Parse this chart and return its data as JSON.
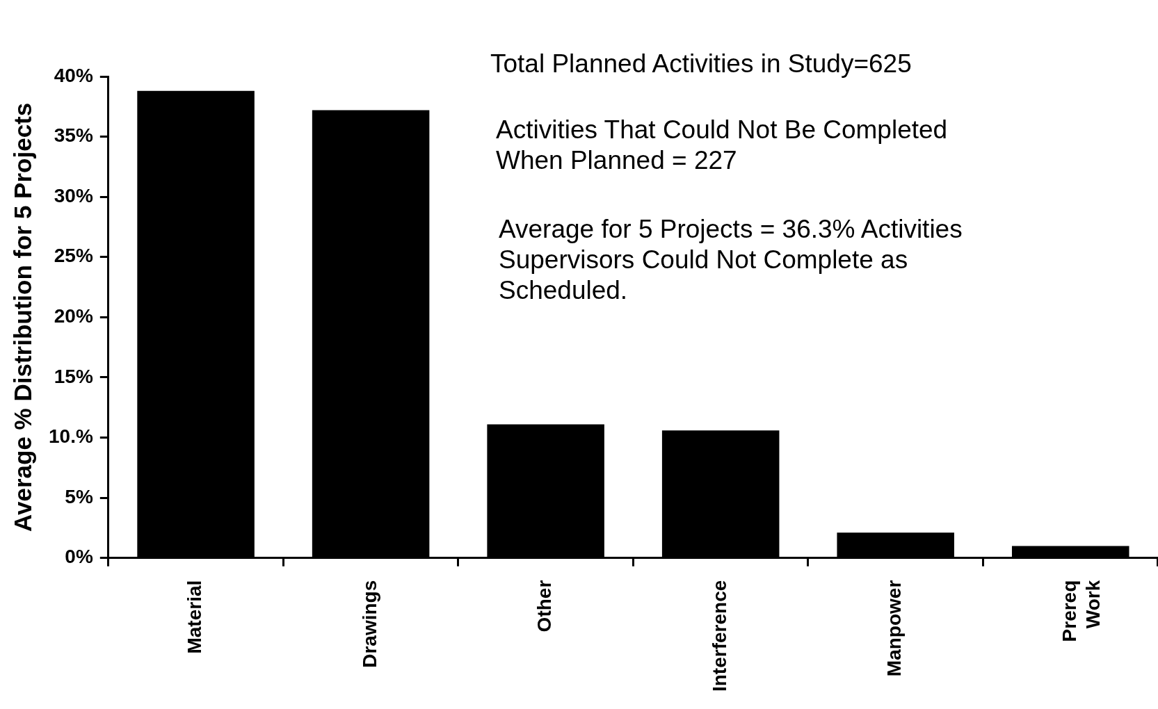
{
  "chart_data": {
    "type": "bar",
    "categories": [
      "Material",
      "Drawings",
      "Other",
      "Interference",
      "Manpower",
      "Prereq\nWork"
    ],
    "values": [
      38.8,
      37.2,
      11.1,
      10.6,
      2.1,
      1.0
    ],
    "color": "#000000",
    "ylabel": "Average % Distribution for 5 Projects",
    "ylim": [
      0,
      40
    ],
    "yticks": [
      {
        "value": 0,
        "label": "0%"
      },
      {
        "value": 5,
        "label": "5%"
      },
      {
        "value": 10,
        "label": "10.%"
      },
      {
        "value": 15,
        "label": "15%"
      },
      {
        "value": 20,
        "label": "20%"
      },
      {
        "value": 25,
        "label": "25%"
      },
      {
        "value": 30,
        "label": "30%"
      },
      {
        "value": 35,
        "label": "35%"
      },
      {
        "value": 40,
        "label": "40%"
      }
    ],
    "grid": false,
    "legend": false,
    "annotations": [
      "Total Planned Activities in Study=625",
      "Activities That Could Not Be Completed\nWhen Planned = 227",
      "Average for 5 Projects = 36.3% Activities\nSupervisors Could Not Complete as\nScheduled."
    ]
  }
}
